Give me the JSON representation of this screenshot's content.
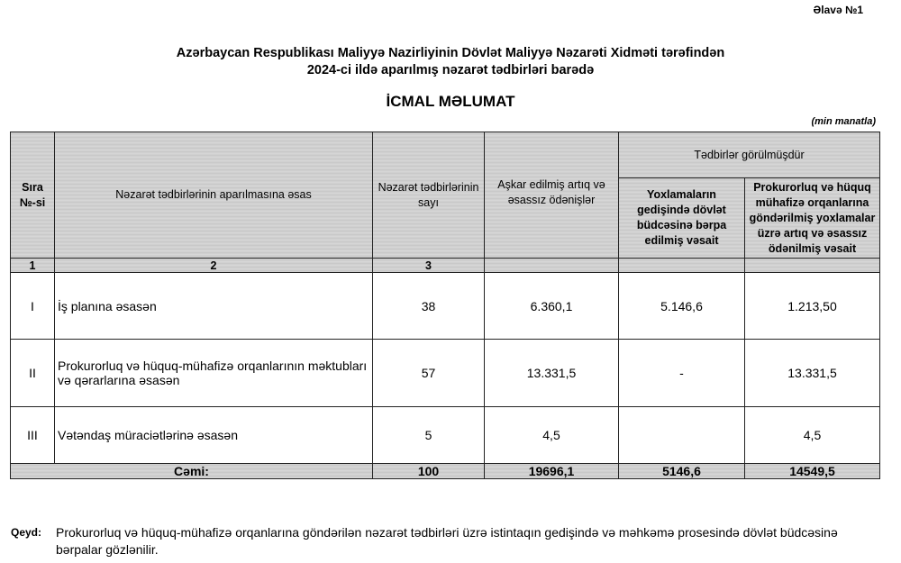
{
  "annex": "Əlavə №1",
  "title_line1": "Azərbaycan Respublikası Maliyyə Nazirliyinin Dövlət Maliyyə Nəzarəti Xidməti tərəfindən",
  "title_line2": "2024-ci ildə aparılmış nəzarət tədbirləri barədə",
  "heading": "İCMAL MƏLUMAT",
  "unit": "(min manatla)",
  "table": {
    "headers": {
      "sira": "Sıra №-si",
      "basis": "Nəzarət tədbirlərinin aparılmasına əsas",
      "count": "Nəzarət tədbirlərinin sayı",
      "found": "Aşkar edilmiş artıq və əsassız ödənişlər",
      "measures": "Tədbirlər görülmüşdür",
      "restored": "Yoxlamaların gedişində dövlət büdcəsinə bərpa edilmiş vəsait",
      "sent": "Prokurorluq və hüquq mühafizə orqanlarına göndərilmiş yoxlamalar üzrə artıq və əsassız ödənilmiş vəsait"
    },
    "col_numbers": [
      "1",
      "2",
      "3",
      "",
      "",
      ""
    ],
    "rows": [
      {
        "no": "I",
        "basis": "İş planına əsasən",
        "count": "38",
        "found": "6.360,1",
        "restored": "5.146,6",
        "sent": "1.213,50"
      },
      {
        "no": "II",
        "basis": "Prokurorluq və hüquq-mühafizə orqanlarının məktubları və qərarlarına əsasən",
        "count": "57",
        "found": "13.331,5",
        "restored": "-",
        "sent": "13.331,5"
      },
      {
        "no": "III",
        "basis": "Vətəndaş müraciətlərinə əsasən",
        "count": "5",
        "found": "4,5",
        "restored": "",
        "sent": "4,5"
      }
    ],
    "total": {
      "label": "Cəmi:",
      "count": "100",
      "found": "19696,1",
      "restored": "5146,6",
      "sent": "14549,5"
    }
  },
  "note_label": "Qeyd:",
  "note": "Prokurorluq və hüquq-mühafizə orqanlarına göndərilən nəzarət tədbirləri üzrə istintaqın gedişində və məhkəmə prosesində dövlət büdcəsinə bərpalar gözlənilir."
}
